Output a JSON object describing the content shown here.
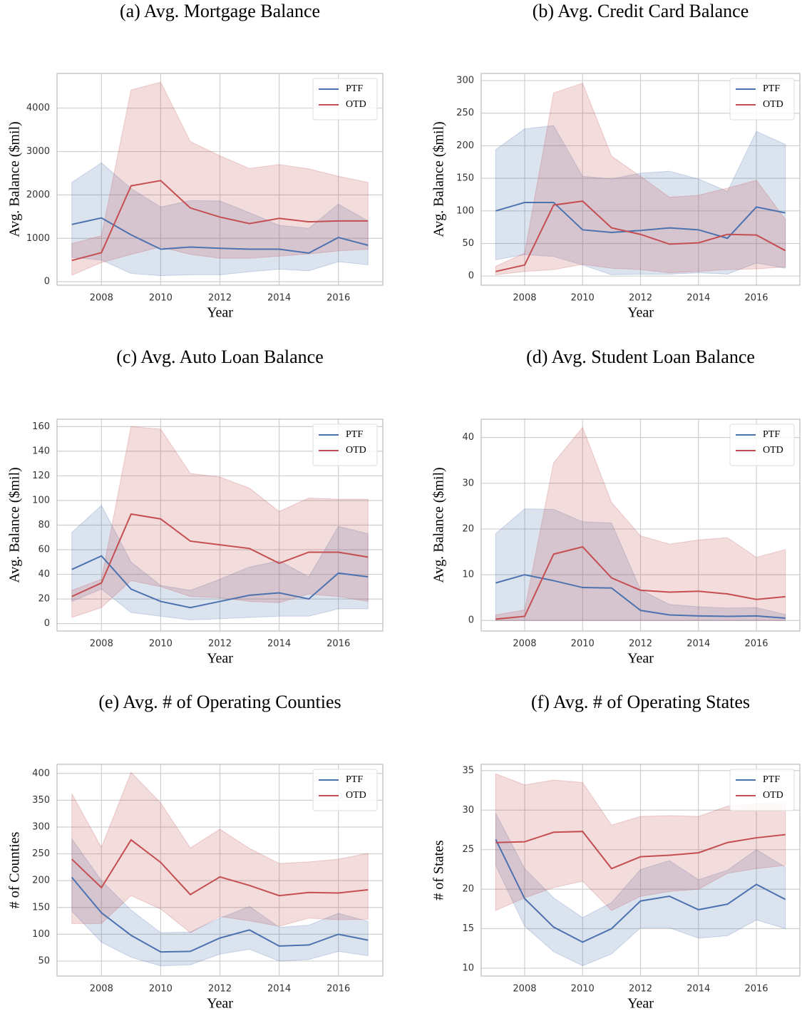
{
  "chart_data": [
    {
      "type": "line",
      "title": "(a) Avg. Mortgage Balance",
      "xlabel": "Year",
      "ylabel": "Avg. Balance ($mil)",
      "x": [
        2007,
        2008,
        2009,
        2010,
        2011,
        2012,
        2013,
        2014,
        2015,
        2016,
        2017
      ],
      "xlim": [
        2006.5,
        2017.5
      ],
      "xticks": [
        2008,
        2010,
        2012,
        2014,
        2016
      ],
      "ylim": [
        -80,
        4800
      ],
      "yticks": [
        0,
        1000,
        2000,
        3000,
        4000
      ],
      "grid": true,
      "legend": "upper right",
      "series": [
        {
          "name": "PTF",
          "color": "#4c72b0",
          "values": [
            1320,
            1470,
            1080,
            750,
            800,
            770,
            750,
            750,
            660,
            1020,
            840
          ],
          "lower": [
            560,
            500,
            190,
            140,
            160,
            160,
            230,
            290,
            250,
            460,
            390
          ],
          "upper": [
            2290,
            2740,
            2150,
            1720,
            1870,
            1860,
            1590,
            1300,
            1230,
            1790,
            1400
          ]
        },
        {
          "name": "OTD",
          "color": "#c44e52",
          "values": [
            490,
            670,
            2210,
            2330,
            1700,
            1490,
            1340,
            1460,
            1380,
            1400,
            1400
          ],
          "lower": [
            150,
            440,
            630,
            800,
            630,
            540,
            540,
            590,
            640,
            710,
            750
          ],
          "upper": [
            880,
            1060,
            4420,
            4600,
            3230,
            2900,
            2610,
            2700,
            2600,
            2430,
            2290
          ]
        }
      ]
    },
    {
      "type": "line",
      "title": "(b) Avg. Credit Card Balance",
      "xlabel": "Year",
      "ylabel": "Avg. Balance ($mil)",
      "x": [
        2007,
        2008,
        2009,
        2010,
        2011,
        2012,
        2013,
        2014,
        2015,
        2016,
        2017
      ],
      "xlim": [
        2006.5,
        2017.5
      ],
      "xticks": [
        2008,
        2010,
        2012,
        2014,
        2016
      ],
      "ylim": [
        -14,
        311
      ],
      "yticks": [
        0,
        50,
        100,
        150,
        200,
        250,
        300
      ],
      "grid": true,
      "legend": "upper right",
      "series": [
        {
          "name": "PTF",
          "color": "#4c72b0",
          "values": [
            100,
            113,
            113,
            71,
            67,
            70,
            74,
            71,
            58,
            106,
            97
          ],
          "lower": [
            25,
            33,
            30,
            17,
            2,
            3,
            3,
            5,
            3,
            20,
            12
          ],
          "upper": [
            194,
            226,
            231,
            153,
            149,
            158,
            161,
            149,
            130,
            222,
            202
          ]
        },
        {
          "name": "OTD",
          "color": "#c44e52",
          "values": [
            7,
            17,
            109,
            115,
            74,
            64,
            49,
            51,
            64,
            63,
            39
          ],
          "lower": [
            2,
            7,
            10,
            18,
            12,
            10,
            5,
            7,
            10,
            11,
            14
          ],
          "upper": [
            15,
            35,
            281,
            296,
            184,
            153,
            121,
            124,
            135,
            147,
            87
          ]
        }
      ]
    },
    {
      "type": "line",
      "title": "(c) Avg. Auto Loan Balance",
      "xlabel": "Year",
      "ylabel": "Avg. Balance ($mil)",
      "x": [
        2007,
        2008,
        2009,
        2010,
        2011,
        2012,
        2013,
        2014,
        2015,
        2016,
        2017
      ],
      "xlim": [
        2006.5,
        2017.5
      ],
      "xticks": [
        2008,
        2010,
        2012,
        2014,
        2016
      ],
      "ylim": [
        -6,
        166
      ],
      "yticks": [
        0,
        20,
        40,
        60,
        80,
        100,
        120,
        140,
        160
      ],
      "grid": true,
      "legend": "upper right",
      "series": [
        {
          "name": "PTF",
          "color": "#4c72b0",
          "values": [
            44,
            55,
            28,
            18,
            13,
            18,
            23,
            25,
            20,
            41,
            38
          ],
          "lower": [
            18,
            28,
            9,
            6,
            3,
            4,
            5,
            6,
            6,
            12,
            12
          ],
          "upper": [
            74,
            96,
            50,
            31,
            27,
            36,
            46,
            51,
            38,
            79,
            73
          ]
        },
        {
          "name": "OTD",
          "color": "#c44e52",
          "values": [
            22,
            33,
            89,
            85,
            67,
            64,
            61,
            49,
            58,
            58,
            54
          ],
          "lower": [
            5,
            13,
            35,
            30,
            22,
            21,
            18,
            17,
            24,
            22,
            18
          ],
          "upper": [
            27,
            36,
            160,
            158,
            122,
            119,
            110,
            91,
            102,
            101,
            101
          ]
        }
      ]
    },
    {
      "type": "line",
      "title": "(d) Avg. Student Loan Balance",
      "xlabel": "Year",
      "ylabel": "Avg. Balance ($mil)",
      "x": [
        2007,
        2008,
        2009,
        2010,
        2011,
        2012,
        2013,
        2014,
        2015,
        2016,
        2017
      ],
      "xlim": [
        2006.5,
        2017.5
      ],
      "xticks": [
        2008,
        2010,
        2012,
        2014,
        2016
      ],
      "ylim": [
        -2.3,
        44
      ],
      "yticks": [
        0,
        10,
        20,
        30,
        40
      ],
      "grid": true,
      "legend": "upper right",
      "series": [
        {
          "name": "PTF",
          "color": "#4c72b0",
          "values": [
            8.2,
            10.0,
            8.7,
            7.2,
            7.1,
            2.2,
            1.2,
            1.0,
            0.9,
            1.0,
            0.5
          ],
          "lower": [
            0,
            0,
            0,
            0,
            0,
            0,
            0,
            0,
            0,
            0,
            0
          ],
          "upper": [
            19,
            24.4,
            24.3,
            21.6,
            21.3,
            6.7,
            3.5,
            3,
            2.7,
            2.8,
            1.3
          ]
        },
        {
          "name": "OTD",
          "color": "#c44e52",
          "values": [
            0.3,
            0.9,
            14.5,
            16.1,
            9.3,
            6.6,
            6.2,
            6.4,
            5.8,
            4.6,
            5.2
          ],
          "lower": [
            0,
            0,
            0,
            0,
            0,
            0,
            0,
            0,
            0,
            0,
            0
          ],
          "upper": [
            1.2,
            2.3,
            34.5,
            42.2,
            25.8,
            18.5,
            16.7,
            17.6,
            18.1,
            13.8,
            15.5
          ]
        }
      ]
    },
    {
      "type": "line",
      "title": "(e) Avg. # of Operating Counties",
      "xlabel": "Year",
      "ylabel": "# of Counties",
      "x": [
        2007,
        2008,
        2009,
        2010,
        2011,
        2012,
        2013,
        2014,
        2015,
        2016,
        2017
      ],
      "xlim": [
        2006.5,
        2017.5
      ],
      "xticks": [
        2008,
        2010,
        2012,
        2014,
        2016
      ],
      "ylim": [
        22,
        417
      ],
      "yticks": [
        50,
        100,
        150,
        200,
        250,
        300,
        350,
        400
      ],
      "grid": true,
      "legend": "upper right",
      "series": [
        {
          "name": "PTF",
          "color": "#4c72b0",
          "values": [
            206,
            140,
            98,
            67,
            68,
            93,
            108,
            78,
            80,
            100,
            89
          ],
          "lower": [
            143,
            85,
            57,
            41,
            43,
            63,
            72,
            50,
            53,
            68,
            60
          ],
          "upper": [
            278,
            200,
            145,
            103,
            104,
            130,
            152,
            113,
            117,
            139,
            124
          ]
        },
        {
          "name": "OTD",
          "color": "#c44e52",
          "values": [
            240,
            187,
            276,
            234,
            174,
            207,
            191,
            172,
            178,
            177,
            183
          ],
          "lower": [
            120,
            120,
            172,
            147,
            103,
            133,
            125,
            115,
            130,
            127,
            128
          ],
          "upper": [
            362,
            262,
            402,
            345,
            261,
            296,
            260,
            232,
            235,
            240,
            251
          ]
        }
      ]
    },
    {
      "type": "line",
      "title": "(f) Avg. # of Operating States",
      "xlabel": "Year",
      "ylabel": "# of States",
      "x": [
        2007,
        2008,
        2009,
        2010,
        2011,
        2012,
        2013,
        2014,
        2015,
        2016,
        2017
      ],
      "xlim": [
        2006.5,
        2017.5
      ],
      "xticks": [
        2008,
        2010,
        2012,
        2014,
        2016
      ],
      "ylim": [
        9,
        35.8
      ],
      "yticks": [
        10,
        15,
        20,
        25,
        30,
        35
      ],
      "grid": true,
      "legend": "upper right",
      "series": [
        {
          "name": "PTF",
          "color": "#4c72b0",
          "values": [
            26.3,
            18.8,
            15.2,
            13.3,
            15.0,
            18.5,
            19.1,
            17.4,
            18.1,
            20.6,
            18.7
          ],
          "lower": [
            23.0,
            15.3,
            12.1,
            10.3,
            11.8,
            15.1,
            15.1,
            13.8,
            14.1,
            16.1,
            15.0
          ],
          "upper": [
            29.6,
            22.6,
            18.9,
            16.4,
            18.3,
            22.5,
            23.6,
            21.2,
            22.4,
            25.0,
            22.8
          ]
        },
        {
          "name": "OTD",
          "color": "#c44e52",
          "values": [
            25.9,
            26.0,
            27.2,
            27.3,
            22.6,
            24.1,
            24.3,
            24.6,
            25.9,
            26.5,
            26.9
          ],
          "lower": [
            17.3,
            18.9,
            20.2,
            21.0,
            17.3,
            19.1,
            19.7,
            20.0,
            22.0,
            22.6,
            23.0
          ],
          "upper": [
            34.6,
            33.2,
            33.8,
            33.5,
            28.1,
            29.2,
            29.3,
            29.2,
            30.5,
            30.8,
            31.0
          ]
        }
      ]
    }
  ]
}
